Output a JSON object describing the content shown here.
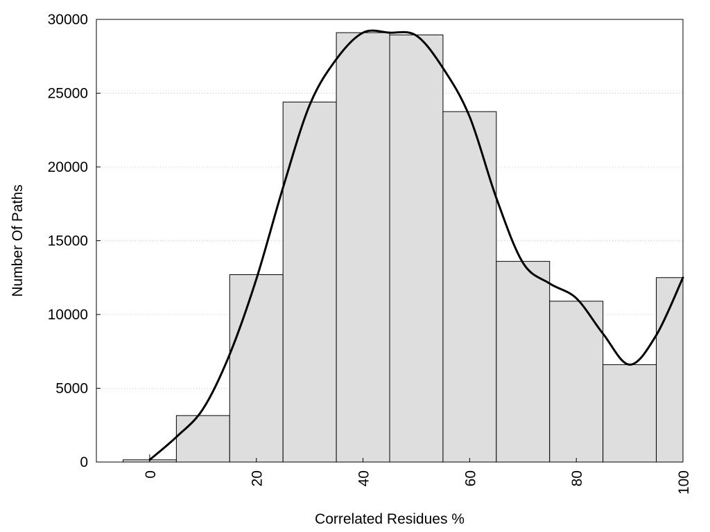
{
  "chart_data": {
    "type": "bar",
    "xlabel": "Correlated Residues %",
    "ylabel": "Number Of Paths",
    "xlim": [
      -10,
      100
    ],
    "ylim": [
      0,
      30000
    ],
    "grid": "horizontal dotted",
    "bar_width": 10,
    "bar_color": "#dedede",
    "bar_edge_color": "#000000",
    "x_ticks": [
      0,
      20,
      40,
      60,
      80,
      100
    ],
    "x_tick_labels": [
      "0",
      "20",
      "40",
      "60",
      "80",
      "100"
    ],
    "y_ticks": [
      0,
      5000,
      10000,
      15000,
      20000,
      25000,
      30000
    ],
    "y_tick_labels": [
      "0",
      "5000",
      "10000",
      "15000",
      "20000",
      "25000",
      "30000"
    ],
    "bars": [
      {
        "x": 0,
        "value": 150
      },
      {
        "x": 10,
        "value": 3150
      },
      {
        "x": 20,
        "value": 12700
      },
      {
        "x": 30,
        "value": 24400
      },
      {
        "x": 40,
        "value": 29100
      },
      {
        "x": 50,
        "value": 28950
      },
      {
        "x": 60,
        "value": 23750
      },
      {
        "x": 70,
        "value": 13600
      },
      {
        "x": 80,
        "value": 10900
      },
      {
        "x": 90,
        "value": 6600
      },
      {
        "x": 100,
        "value": 12500
      }
    ],
    "curve": {
      "type": "line",
      "style": "smooth",
      "color": "#000000",
      "points": [
        [
          0,
          150
        ],
        [
          5,
          1700
        ],
        [
          10,
          3600
        ],
        [
          15,
          7300
        ],
        [
          20,
          12400
        ],
        [
          25,
          18600
        ],
        [
          30,
          24200
        ],
        [
          35,
          27300
        ],
        [
          40,
          29100
        ],
        [
          45,
          29100
        ],
        [
          50,
          28900
        ],
        [
          55,
          26700
        ],
        [
          60,
          23400
        ],
        [
          65,
          17900
        ],
        [
          70,
          13500
        ],
        [
          75,
          12100
        ],
        [
          80,
          11100
        ],
        [
          85,
          8700
        ],
        [
          90,
          6600
        ],
        [
          95,
          8600
        ],
        [
          100,
          12500
        ]
      ]
    }
  }
}
